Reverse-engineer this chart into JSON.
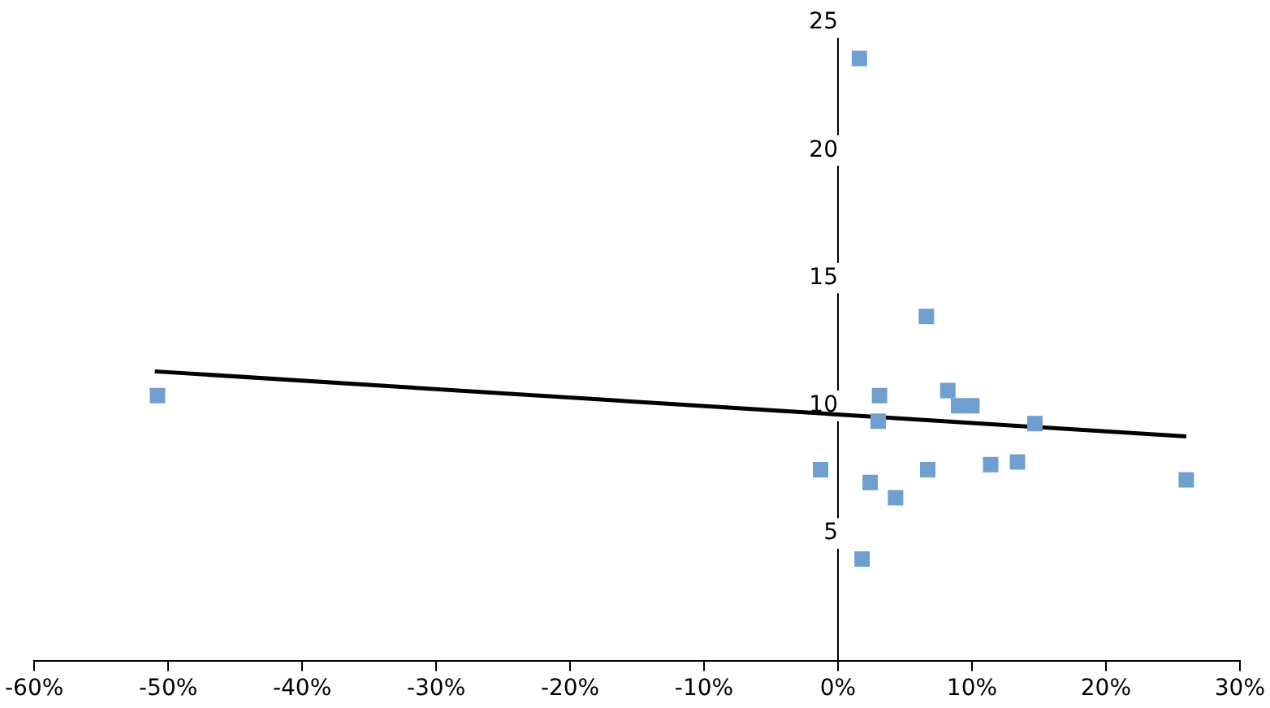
{
  "chart_data": {
    "type": "scatter",
    "marker": "square",
    "grid": false,
    "legend": false,
    "xlim": [
      -60,
      30
    ],
    "xticks": [
      {
        "value": -60,
        "label": "-60%"
      },
      {
        "value": -50,
        "label": "-50%"
      },
      {
        "value": -40,
        "label": "-40%"
      },
      {
        "value": -30,
        "label": "-30%"
      },
      {
        "value": -20,
        "label": "-20%"
      },
      {
        "value": -10,
        "label": "-10%"
      },
      {
        "value": 0,
        "label": "0%"
      },
      {
        "value": 10,
        "label": "10%"
      },
      {
        "value": 20,
        "label": "20%"
      },
      {
        "value": 30,
        "label": "30%"
      }
    ],
    "ylim": [
      0,
      25
    ],
    "yticks": [
      5,
      10,
      15,
      20,
      25
    ],
    "series": [
      {
        "color": "#6f9fcf",
        "x": [
          -50.8,
          1.6,
          6.6,
          -1.3,
          3.1,
          3.0,
          2.4,
          1.8,
          4.3,
          6.7,
          8.2,
          9.0,
          10.0,
          11.4,
          13.4,
          14.7,
          26.0
        ],
        "values": [
          10.4,
          23.6,
          13.5,
          7.5,
          10.4,
          9.4,
          7.0,
          4.0,
          6.4,
          7.5,
          10.6,
          10.0,
          10.0,
          7.7,
          7.8,
          9.3,
          7.1
        ]
      },
      {
        "type": "line",
        "color": "#000000",
        "marker": "none",
        "line_style": "solid",
        "x": [
          -51,
          26
        ],
        "values": [
          11.35,
          8.8
        ]
      }
    ]
  }
}
